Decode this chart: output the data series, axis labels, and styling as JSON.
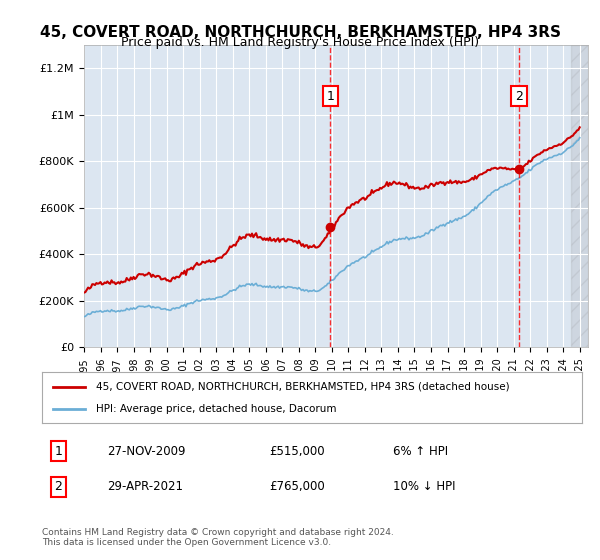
{
  "title": "45, COVERT ROAD, NORTHCHURCH, BERKHAMSTED, HP4 3RS",
  "subtitle": "Price paid vs. HM Land Registry's House Price Index (HPI)",
  "ylabel": "",
  "background_color": "#ffffff",
  "plot_bg_color": "#dce6f1",
  "grid_color": "#ffffff",
  "transaction1_date": "27-NOV-2009",
  "transaction1_price": 515000,
  "transaction1_label": "1",
  "transaction1_hpi": "6% ↑ HPI",
  "transaction2_date": "29-APR-2021",
  "transaction2_price": 765000,
  "transaction2_label": "2",
  "transaction2_hpi": "10% ↓ HPI",
  "legend_line1": "45, COVERT ROAD, NORTHCHURCH, BERKHAMSTED, HP4 3RS (detached house)",
  "legend_line2": "HPI: Average price, detached house, Dacorum",
  "footer": "Contains HM Land Registry data © Crown copyright and database right 2024.\nThis data is licensed under the Open Government Licence v3.0.",
  "ylim": [
    0,
    1300000
  ],
  "xlim_start": 1995.0,
  "xlim_end": 2025.5,
  "hpi_color": "#6baed6",
  "price_color": "#cc0000",
  "marker1_x": 2009.9,
  "marker2_x": 2021.33,
  "yticks": [
    0,
    200000,
    400000,
    600000,
    800000,
    1000000,
    1200000
  ],
  "ytick_labels": [
    "£0",
    "£200K",
    "£400K",
    "£600K",
    "£800K",
    "£1M",
    "£1.2M"
  ]
}
